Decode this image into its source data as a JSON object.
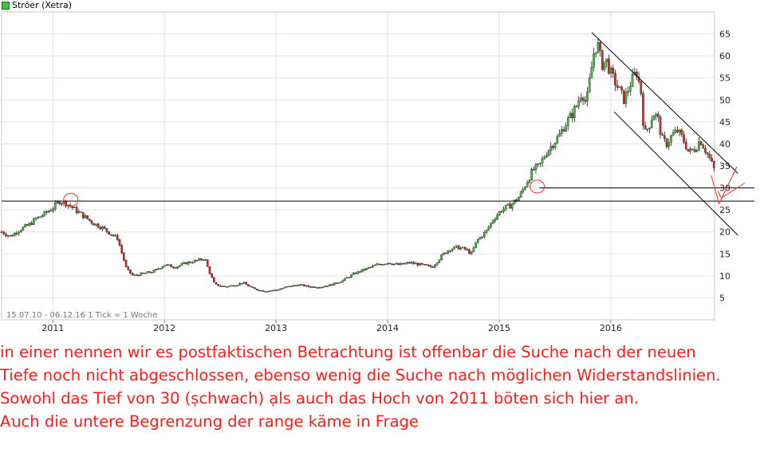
{
  "chart_data": {
    "type": "candlestick",
    "legend": {
      "label": "Ströer (Xetra)",
      "placement": "top-left",
      "color": "#3fbf3f"
    },
    "info_text": "15.07.10 - 06.12.16   1 Tick = 1 Woche",
    "x_ticks": [
      "2011",
      "2012",
      "2013",
      "2014",
      "2015",
      "2016"
    ],
    "y_ticks": [
      5,
      10,
      15,
      20,
      25,
      30,
      35,
      40,
      45,
      50,
      55,
      60,
      65
    ],
    "ylim": [
      0,
      70
    ],
    "xlim": [
      2010.54,
      2016.93
    ],
    "grid": true,
    "up_color": "#3fbf3f",
    "down_color": "#d42c2c",
    "line_color": "#000000",
    "annotation_color": "#ff2a2a",
    "price_path": [
      [
        2010.54,
        20.0
      ],
      [
        2010.62,
        19.0
      ],
      [
        2010.7,
        20.5
      ],
      [
        2010.78,
        21.5
      ],
      [
        2010.85,
        23.0
      ],
      [
        2010.92,
        24.0
      ],
      [
        2011.0,
        25.5
      ],
      [
        2011.06,
        27.0
      ],
      [
        2011.12,
        26.5
      ],
      [
        2011.2,
        25.0
      ],
      [
        2011.28,
        23.5
      ],
      [
        2011.36,
        22.0
      ],
      [
        2011.44,
        21.0
      ],
      [
        2011.52,
        19.5
      ],
      [
        2011.58,
        18.5
      ],
      [
        2011.62,
        15.0
      ],
      [
        2011.66,
        11.5
      ],
      [
        2011.72,
        10.0
      ],
      [
        2011.8,
        10.5
      ],
      [
        2011.9,
        11.0
      ],
      [
        2012.0,
        12.5
      ],
      [
        2012.1,
        12.0
      ],
      [
        2012.2,
        13.0
      ],
      [
        2012.3,
        13.5
      ],
      [
        2012.36,
        14.0
      ],
      [
        2012.4,
        11.0
      ],
      [
        2012.45,
        8.0
      ],
      [
        2012.55,
        7.5
      ],
      [
        2012.65,
        8.0
      ],
      [
        2012.7,
        8.5
      ],
      [
        2012.8,
        7.0
      ],
      [
        2012.9,
        6.5
      ],
      [
        2013.0,
        6.8
      ],
      [
        2013.1,
        7.5
      ],
      [
        2013.2,
        8.0
      ],
      [
        2013.3,
        7.5
      ],
      [
        2013.4,
        7.5
      ],
      [
        2013.5,
        8.0
      ],
      [
        2013.6,
        9.0
      ],
      [
        2013.7,
        10.5
      ],
      [
        2013.8,
        11.5
      ],
      [
        2013.9,
        12.5
      ],
      [
        2014.0,
        13.0
      ],
      [
        2014.1,
        12.5
      ],
      [
        2014.2,
        13.0
      ],
      [
        2014.3,
        12.5
      ],
      [
        2014.4,
        12.0
      ],
      [
        2014.45,
        13.5
      ],
      [
        2014.5,
        15.0
      ],
      [
        2014.55,
        16.0
      ],
      [
        2014.62,
        16.5
      ],
      [
        2014.7,
        16.0
      ],
      [
        2014.75,
        15.0
      ],
      [
        2014.8,
        18.0
      ],
      [
        2014.88,
        20.0
      ],
      [
        2014.95,
        23.0
      ],
      [
        2015.02,
        25.0
      ],
      [
        2015.1,
        26.0
      ],
      [
        2015.18,
        28.0
      ],
      [
        2015.24,
        31.0
      ],
      [
        2015.3,
        34.0
      ],
      [
        2015.36,
        35.0
      ],
      [
        2015.42,
        38.0
      ],
      [
        2015.48,
        40.0
      ],
      [
        2015.54,
        42.0
      ],
      [
        2015.58,
        44.0
      ],
      [
        2015.62,
        45.5
      ],
      [
        2015.66,
        47.0
      ],
      [
        2015.7,
        49.0
      ],
      [
        2015.74,
        52.0
      ],
      [
        2015.78,
        49.0
      ],
      [
        2015.82,
        56.0
      ],
      [
        2015.85,
        61.0
      ],
      [
        2015.88,
        63.0
      ],
      [
        2015.92,
        58.0
      ],
      [
        2015.96,
        59.0
      ],
      [
        2016.0,
        56.0
      ],
      [
        2016.04,
        54.0
      ],
      [
        2016.08,
        52.0
      ],
      [
        2016.12,
        50.0
      ],
      [
        2016.18,
        54.0
      ],
      [
        2016.23,
        56.5
      ],
      [
        2016.27,
        52.0
      ],
      [
        2016.3,
        42.0
      ],
      [
        2016.34,
        44.0
      ],
      [
        2016.38,
        47.0
      ],
      [
        2016.42,
        46.0
      ],
      [
        2016.46,
        41.0
      ],
      [
        2016.5,
        40.0
      ],
      [
        2016.55,
        42.0
      ],
      [
        2016.6,
        43.0
      ],
      [
        2016.65,
        41.0
      ],
      [
        2016.7,
        38.0
      ],
      [
        2016.76,
        39.0
      ],
      [
        2016.8,
        41.0
      ],
      [
        2016.84,
        39.0
      ],
      [
        2016.88,
        37.0
      ],
      [
        2016.93,
        34.0
      ]
    ],
    "horizontal_lines": [
      {
        "value": 27.0,
        "x_from": 2010.54,
        "x_to": 2016.93
      },
      {
        "value": 30.0,
        "x_from": 2015.36,
        "x_to": 2016.93
      }
    ],
    "trend_lines": [
      {
        "from": [
          2015.83,
          65.3
        ],
        "to": [
          2017.14,
          33.3
        ]
      },
      {
        "from": [
          2016.03,
          47.3
        ],
        "to": [
          2017.14,
          19.2
        ]
      }
    ],
    "circles": [
      {
        "x": 2011.16,
        "y": 27.3
      },
      {
        "x": 2015.34,
        "y": 30.3
      }
    ],
    "check_marks": [
      {
        "start": [
          2016.9,
          32.8
        ],
        "mid": [
          2016.97,
          26.4
        ],
        "end": [
          2017.13,
          34.8
        ]
      },
      {
        "start": [
          2016.96,
          29.3
        ],
        "mid": [
          2016.99,
          27.7
        ],
        "end": [
          2017.2,
          31.1
        ]
      }
    ]
  },
  "caption": {
    "lines": [
      "in einer nennen wir es postfaktischen Betrachtung ist offenbar die Suche nach der neuen",
      "Tiefe noch nicht abgeschlossen, ebenso wenig die Suche nach möglichen Widerstandslinien.",
      "Sowohl das Tief von 30 (ṣchwach) ạls auch das Hoch von 2011 böten sich hier an.",
      "Aꭒch die untere Begrenzung der range käme in Frage"
    ]
  }
}
